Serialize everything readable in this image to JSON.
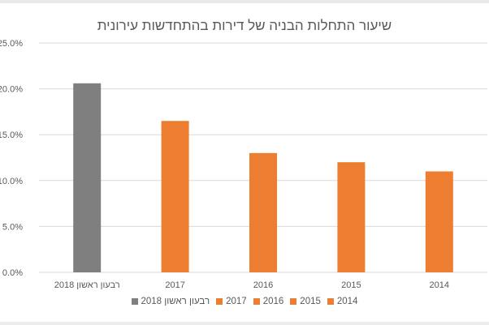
{
  "chart_data": {
    "type": "bar",
    "title": "שיעור התחלות הבניה של דירות בהתחדשות עירונית",
    "xlabel": "",
    "ylabel": "",
    "categories": [
      "רבעון ראשון 2018",
      "2017",
      "2016",
      "2015",
      "2014"
    ],
    "values": [
      20.6,
      16.5,
      13.0,
      12.0,
      11.0
    ],
    "unit": "%",
    "ylim": [
      0,
      25
    ],
    "yticks": [
      "0.0%",
      "5.0%",
      "10.0%",
      "15.0%",
      "20.0%",
      "25.0%"
    ],
    "ytick_values": [
      0,
      5,
      10,
      15,
      20,
      25
    ],
    "grid": true,
    "legend_position": "bottom",
    "legend": [
      "רבעון ראשון 2018",
      "2017",
      "2016",
      "2015",
      "2014"
    ],
    "colors": [
      "#7f7f7f",
      "#ed7d31",
      "#ed7d31",
      "#ed7d31",
      "#ed7d31"
    ],
    "gridline_color": "#d9d9d9"
  }
}
